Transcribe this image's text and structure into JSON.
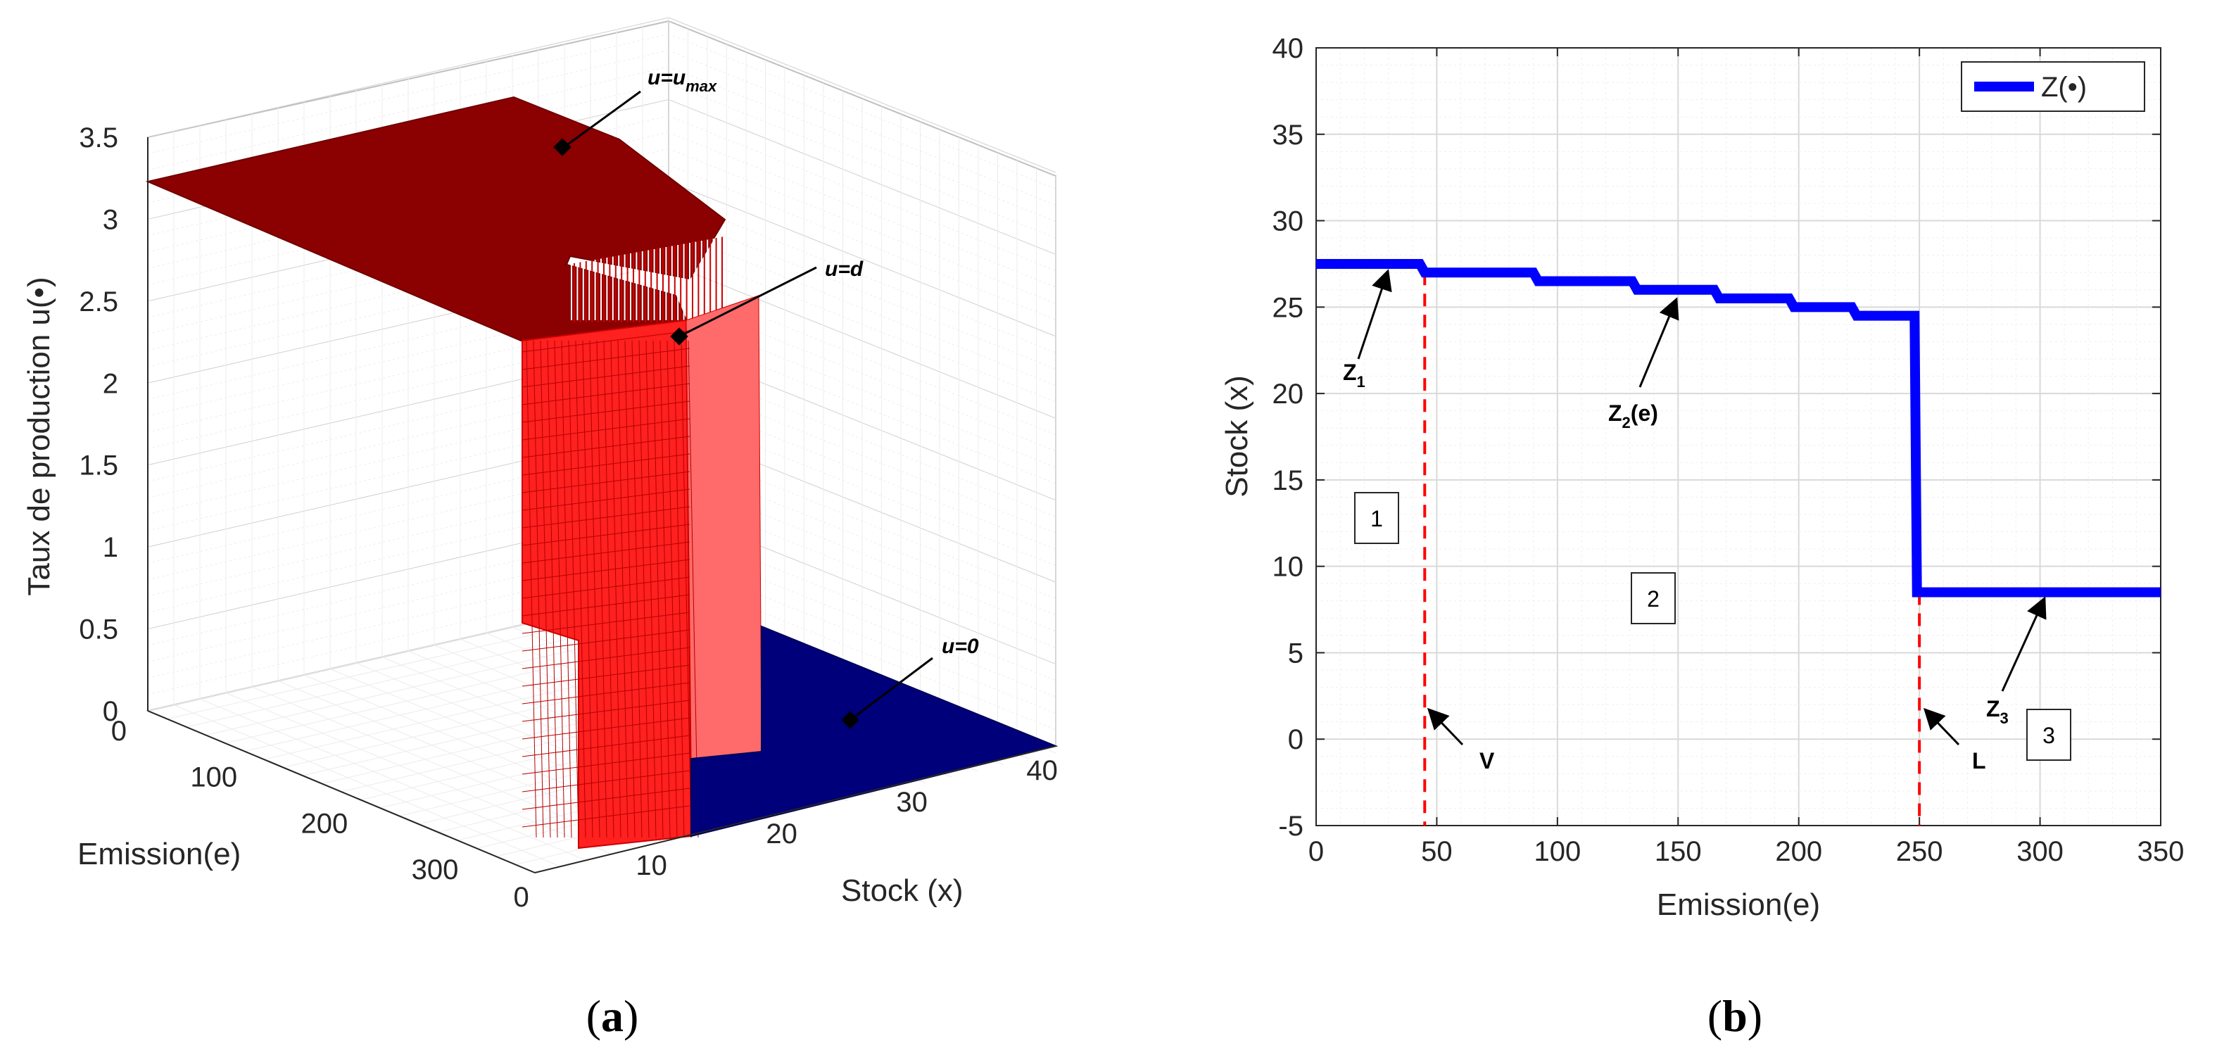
{
  "captions": {
    "a": "a",
    "b": "b"
  },
  "chart_data": [
    {
      "type": "surface",
      "panel": "a",
      "title": "",
      "zlabel": "Taux de production u(•)",
      "xlabel": "Emission(e)",
      "ylabel": "Stock (x)",
      "zticks": [
        "0",
        "0.5",
        "1",
        "1.5",
        "2",
        "2.5",
        "3",
        "3.5"
      ],
      "eticks": [
        "0",
        "100",
        "200",
        "300"
      ],
      "xticks": [
        "0",
        "10",
        "20",
        "30",
        "40"
      ],
      "zlim": [
        0,
        3.5
      ],
      "elim": [
        0,
        350
      ],
      "xlim": [
        0,
        40
      ],
      "regions": [
        {
          "name": "u=u_max",
          "value": 3.25,
          "color": "#8b0000"
        },
        {
          "name": "u=d",
          "value": 2.7,
          "color": "#ff2020"
        },
        {
          "name": "u=0",
          "value": 0,
          "color": "#00007a"
        }
      ],
      "annotations": [
        {
          "prefix": "u=u",
          "sub": "max"
        },
        {
          "prefix": "u=d",
          "sub": ""
        },
        {
          "prefix": "u=0",
          "sub": ""
        }
      ]
    },
    {
      "type": "line",
      "panel": "b",
      "title": "",
      "xlabel": "Emission(e)",
      "ylabel": "Stock (x)",
      "xlim": [
        0,
        350
      ],
      "ylim": [
        -5,
        40
      ],
      "xticks": [
        0,
        50,
        100,
        150,
        200,
        250,
        300,
        350
      ],
      "yticks": [
        -5,
        0,
        5,
        10,
        15,
        20,
        25,
        30,
        35,
        40
      ],
      "grid": true,
      "legend": {
        "position": "top-right",
        "entries": [
          "Z(•)"
        ]
      },
      "series": [
        {
          "name": "Z(•)",
          "color": "#0000ff",
          "points": [
            [
              0,
              27.5
            ],
            [
              43,
              27.5
            ],
            [
              45,
              27
            ],
            [
              90,
              27
            ],
            [
              92,
              26.5
            ],
            [
              131,
              26.5
            ],
            [
              133,
              26
            ],
            [
              165,
              26
            ],
            [
              167,
              25.5
            ],
            [
              196,
              25.5
            ],
            [
              198,
              25
            ],
            [
              222,
              25
            ],
            [
              224,
              24.5
            ],
            [
              248,
              24.5
            ],
            [
              249,
              8.5
            ],
            [
              350,
              8.5
            ]
          ]
        }
      ],
      "vlines": [
        {
          "x": 45,
          "label": "V",
          "color": "#ff0000"
        },
        {
          "x": 250,
          "label": "L",
          "color": "#ff0000"
        }
      ],
      "labels": [
        {
          "text": "Z",
          "sub": "1"
        },
        {
          "text": "Z",
          "sub": "2",
          "suffix": "(e)"
        },
        {
          "text": "Z",
          "sub": "3"
        }
      ],
      "regions": [
        "1",
        "2",
        "3"
      ]
    }
  ]
}
